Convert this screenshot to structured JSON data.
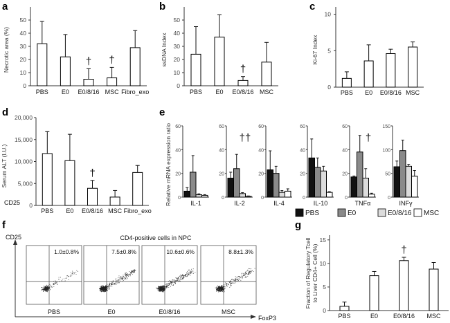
{
  "chart_data": [
    {
      "id": "a",
      "type": "bar",
      "letter": "a",
      "ylabel": "Necrotic area (%)",
      "ylim": [
        0,
        60
      ],
      "yticks": [
        0,
        10,
        20,
        30,
        40,
        50
      ],
      "categories": [
        "PBS",
        "E0",
        "E0/8/16",
        "MSC",
        "Fibro_exo"
      ],
      "values": [
        32,
        22,
        5,
        6,
        29
      ],
      "errors": [
        17,
        17,
        8,
        8,
        13
      ],
      "fills": [
        "#ffffff",
        "#ffffff",
        "#ffffff",
        "#ffffff",
        "#ffffff"
      ],
      "daggers": [
        "",
        "",
        "†",
        "†",
        ""
      ]
    },
    {
      "id": "b",
      "type": "bar",
      "letter": "b",
      "ylabel": "ssDNA Index",
      "ylim": [
        0,
        60
      ],
      "yticks": [
        0,
        10,
        20,
        30,
        40,
        50
      ],
      "categories": [
        "PBS",
        "E0",
        "E0/8/16",
        "MSC"
      ],
      "values": [
        24,
        37,
        4,
        18
      ],
      "errors": [
        21,
        17,
        3,
        15
      ],
      "fills": [
        "#ffffff",
        "#ffffff",
        "#ffffff",
        "#ffffff"
      ],
      "daggers": [
        "",
        "",
        "†",
        ""
      ]
    },
    {
      "id": "c",
      "type": "bar",
      "letter": "c",
      "ylabel": "Ki-67 Index",
      "ylim": [
        0,
        11
      ],
      "yticks": [
        0,
        5,
        10
      ],
      "categories": [
        "PBS",
        "E0",
        "E0/8/16",
        "MSC"
      ],
      "values": [
        1.2,
        3.6,
        4.6,
        5.5
      ],
      "errors": [
        0.9,
        2.2,
        0.6,
        0.7
      ],
      "fills": [
        "#ffffff",
        "#ffffff",
        "#ffffff",
        "#ffffff"
      ],
      "daggers": [
        "",
        "",
        "",
        ""
      ]
    },
    {
      "id": "d",
      "type": "bar",
      "letter": "d",
      "ylabel": "Serum ALT (I.U.)",
      "ylim": [
        0,
        20000
      ],
      "yticks": [
        0,
        5000,
        10000,
        15000,
        20000
      ],
      "ytick_labels": [
        "0",
        "5,000",
        "10,000",
        "15,000",
        "20,000"
      ],
      "categories": [
        "PBS",
        "E0",
        "E0/8/16",
        "MSC",
        "Fibro_exo"
      ],
      "values": [
        11800,
        10200,
        3900,
        1900,
        7500
      ],
      "errors": [
        5000,
        6000,
        1800,
        1500,
        1600
      ],
      "fills": [
        "#ffffff",
        "#ffffff",
        "#ffffff",
        "#ffffff",
        "#ffffff"
      ],
      "daggers": [
        "",
        "",
        "†",
        "",
        ""
      ],
      "extra_label": "CD25"
    },
    {
      "id": "e",
      "type": "bar",
      "letter": "e",
      "ylabel": "Relative mRNA expression ratio",
      "series": [
        "PBS",
        "E0",
        "E0/8/16",
        "MSC"
      ],
      "series_colors": [
        "#111111",
        "#8a8a8a",
        "#dcdcdc",
        "#ffffff"
      ],
      "legend_position": "bottom",
      "groups": [
        {
          "name": "IL-1",
          "ylim": [
            0,
            60
          ],
          "ticks": [
            0,
            20,
            40,
            60
          ],
          "values": [
            5,
            21,
            2,
            1.5
          ],
          "errors": [
            3,
            14,
            0.8,
            0.6
          ],
          "dagger": ""
        },
        {
          "name": "IL-2",
          "ylim": [
            0,
            60
          ],
          "ticks": [
            0,
            20,
            40,
            60
          ],
          "values": [
            16,
            24,
            3,
            0.7
          ],
          "errors": [
            5,
            12,
            0.8,
            0.3
          ],
          "dagger": "††"
        },
        {
          "name": "IL-4",
          "ylim": [
            0,
            60
          ],
          "ticks": [
            0,
            20,
            40,
            60
          ],
          "values": [
            23,
            20,
            4,
            5
          ],
          "errors": [
            16,
            6,
            1.5,
            2
          ],
          "dagger": ""
        },
        {
          "name": "IL-10",
          "ylim": [
            0,
            60
          ],
          "ticks": [
            0,
            20,
            40,
            60
          ],
          "values": [
            33,
            25,
            22,
            4
          ],
          "errors": [
            16,
            8,
            4,
            0.6
          ],
          "dagger": ""
        },
        {
          "name": "TNFα",
          "ylim": [
            0,
            60
          ],
          "ticks": [
            0,
            20,
            40,
            60
          ],
          "values": [
            17,
            38,
            16,
            2.5
          ],
          "errors": [
            0.8,
            14,
            8,
            0.8
          ],
          "dagger": "†"
        },
        {
          "name": "INFγ",
          "ylim": [
            0,
            150
          ],
          "ticks": [
            0,
            50,
            100,
            150
          ],
          "values": [
            64,
            98,
            65,
            44
          ],
          "errors": [
            12,
            22,
            4,
            12
          ],
          "dagger": ""
        }
      ]
    },
    {
      "id": "g",
      "type": "bar",
      "letter": "g",
      "ylabel": "Fraction of Regulatory Tcell to Liver CD4+ Cell (%)",
      "ylabel_line1": "Fraction of Regulatory Tcell",
      "ylabel_line2": "to Liver CD4+ Cell (%)",
      "ylim": [
        0,
        16
      ],
      "yticks": [
        0,
        5,
        10,
        15
      ],
      "categories": [
        "PBS",
        "E0",
        "E0/8/16",
        "MSC"
      ],
      "values": [
        0.9,
        7.4,
        10.6,
        8.8
      ],
      "errors": [
        0.9,
        0.9,
        0.7,
        1.4
      ],
      "fills": [
        "#ffffff",
        "#ffffff",
        "#ffffff",
        "#ffffff"
      ],
      "daggers": [
        "",
        "",
        "†",
        ""
      ]
    }
  ],
  "flow_panel": {
    "letter": "f",
    "title": "CD4-positive cells in NPC",
    "y_axis_label": "CD25",
    "x_axis_label": "FoxP3",
    "plots": [
      {
        "name": "PBS",
        "percent": "1.0±0.8%",
        "density": 0.35
      },
      {
        "name": "E0",
        "percent": "7.5±0.8%",
        "density": 1.0
      },
      {
        "name": "E0/8/16",
        "percent": "10.6±0.6%",
        "density": 1.0
      },
      {
        "name": "MSC",
        "percent": "8.8±1.3%",
        "density": 0.8
      }
    ]
  }
}
